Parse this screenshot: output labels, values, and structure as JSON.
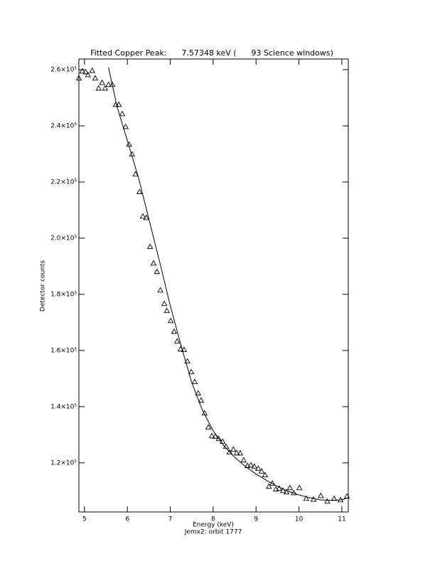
{
  "chart_data": {
    "type": "scatter",
    "title": "Fitted Copper Peak:      7.57348 keV (      93 Science windows)",
    "x_label": "Energy (keV)",
    "subtitle": "Jemx2: orbit 1777",
    "y_label": "Detector counts",
    "xlim": [
      4.87,
      11.15
    ],
    "xticks": [
      5,
      6,
      7,
      8,
      9,
      10,
      11
    ],
    "ylim": [
      102500,
      263800
    ],
    "yticks": [
      {
        "value": 120000,
        "label": "1.2×10⁵"
      },
      {
        "value": 140000,
        "label": "1.4×10⁵"
      },
      {
        "value": 160000,
        "label": "1.6×10⁵"
      },
      {
        "value": 180000,
        "label": "1.8×10⁵"
      },
      {
        "value": 200000,
        "label": "2.0×10⁵"
      },
      {
        "value": 220000,
        "label": "2.2×10⁵"
      },
      {
        "value": 240000,
        "label": "2.4×10⁵"
      },
      {
        "value": 260000,
        "label": "2.6×10⁵"
      }
    ],
    "color": "#000000",
    "series": [
      {
        "marker": "triangle",
        "x": [
          4.87,
          4.95,
          5.03,
          5.08,
          5.18,
          5.25,
          5.33,
          5.41,
          5.48,
          5.56,
          5.65,
          5.73,
          5.8,
          5.88,
          5.96,
          6.04,
          6.11,
          6.19,
          6.28,
          6.36,
          6.44,
          6.53,
          6.61,
          6.69,
          6.77,
          6.86,
          6.92,
          7.01,
          7.09,
          7.16,
          7.24,
          7.32,
          7.4,
          7.49,
          7.57,
          7.65,
          7.72,
          7.8,
          7.89,
          7.97,
          8.05,
          8.13,
          8.22,
          8.3,
          8.38,
          8.47,
          8.55,
          8.63,
          8.71,
          8.8,
          8.88,
          8.96,
          9.05,
          9.13,
          9.21,
          9.3,
          9.38,
          9.46,
          9.54,
          9.63,
          9.71,
          9.79,
          9.88,
          10.01,
          10.17,
          10.34,
          10.51,
          10.66,
          10.82,
          10.97,
          11.12
        ],
        "values": [
          257000,
          259500,
          259200,
          258200,
          259700,
          257000,
          253400,
          255400,
          253400,
          254700,
          254700,
          247600,
          247600,
          244300,
          239700,
          233400,
          229900,
          222800,
          216500,
          207800,
          207300,
          197000,
          191100,
          188100,
          181500,
          176700,
          174200,
          170600,
          166800,
          163300,
          160500,
          160300,
          156200,
          152400,
          148900,
          144800,
          142300,
          137700,
          132700,
          129600,
          129400,
          128600,
          127600,
          125800,
          123800,
          124800,
          123500,
          123500,
          121000,
          119000,
          119200,
          118700,
          118000,
          117000,
          115700,
          111600,
          112700,
          110600,
          110900,
          110100,
          109600,
          111100,
          109300,
          111100,
          107300,
          107000,
          108300,
          106300,
          107300,
          106800,
          108100
        ]
      },
      {
        "marker": "line",
        "x": [
          5.56,
          5.76,
          6.01,
          6.26,
          6.51,
          6.76,
          7.01,
          7.26,
          7.5,
          7.75,
          8.0,
          8.25,
          8.5,
          8.75,
          9.0,
          9.25,
          9.49,
          9.74,
          9.99,
          10.24,
          10.49,
          10.74,
          10.99,
          11.15
        ],
        "values": [
          260800,
          246800,
          234200,
          221500,
          206300,
          191100,
          175400,
          161300,
          148600,
          138700,
          131400,
          126100,
          122000,
          118700,
          116000,
          113700,
          111700,
          109900,
          108600,
          107600,
          106800,
          106600,
          106800,
          107600
        ]
      }
    ]
  }
}
